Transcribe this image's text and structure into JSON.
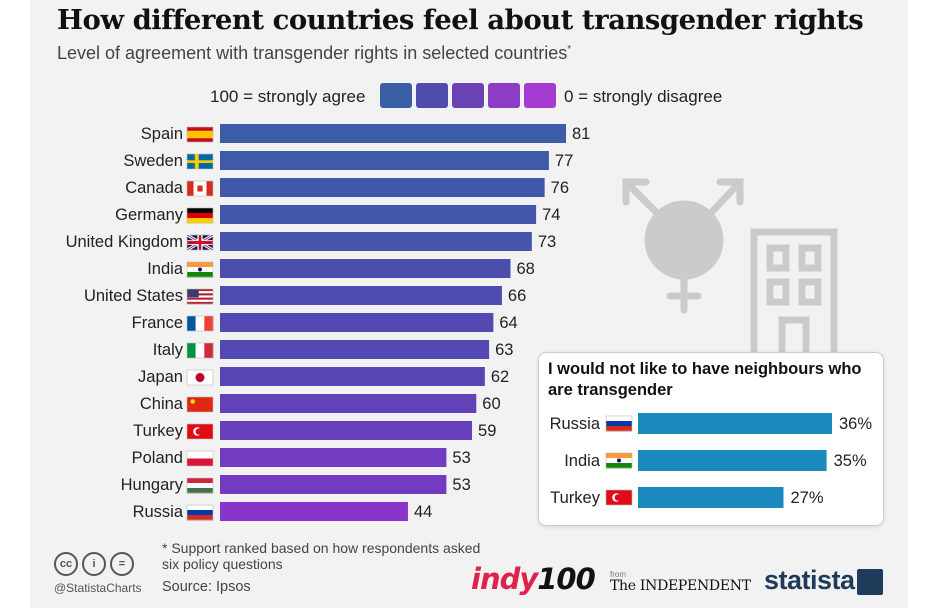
{
  "header": {
    "title": "How different countries feel about transgender rights",
    "subtitle": "Level of agreement with transgender rights in selected countries",
    "subtitle_mark": "*"
  },
  "legend": {
    "left_label": "100 = strongly agree",
    "right_label": "0 = strongly disagree",
    "swatch_colors": [
      "#3b5fa6",
      "#4f4cab",
      "#6a42b3",
      "#8b3ec4",
      "#a53ad0"
    ]
  },
  "chart_data": [
    {
      "type": "bar",
      "orientation": "horizontal",
      "title": "How different countries feel about transgender rights",
      "categories": [
        "Spain",
        "Sweden",
        "Canada",
        "Germany",
        "United Kingdom",
        "India",
        "United States",
        "France",
        "Italy",
        "Japan",
        "China",
        "Turkey",
        "Poland",
        "Hungary",
        "Russia"
      ],
      "values": [
        81,
        77,
        76,
        74,
        73,
        68,
        66,
        64,
        63,
        62,
        60,
        59,
        53,
        53,
        44
      ],
      "xlim": [
        0,
        100
      ],
      "grid": false,
      "colors": [
        "#3d5ca8",
        "#3f5aa9",
        "#4158aa",
        "#4456ab",
        "#4655ab",
        "#4b4ead",
        "#4e4caf",
        "#5249b2",
        "#5448b3",
        "#5746b4",
        "#6142b8",
        "#6540ba",
        "#733bc0",
        "#733bc0",
        "#8a35ca"
      ]
    },
    {
      "type": "bar",
      "orientation": "horizontal",
      "title": "I would not like to have neighbours who are transgender",
      "categories": [
        "Russia",
        "India",
        "Turkey"
      ],
      "values": [
        36,
        35,
        27
      ],
      "value_suffix": "%",
      "color": "#1b8bbf"
    }
  ],
  "inset": {
    "title": "I would not like to have neighbours who are transgender"
  },
  "decor": {
    "symbol_icon": "transgender-symbol-icon",
    "building_icon": "building-icon",
    "symbol_color": "#cbcbcb"
  },
  "footer": {
    "footnote": "* Support ranked based on how respondents asked six policy questions",
    "source": "Source: Ipsos",
    "handle": "@StatistaCharts",
    "cc_icons": [
      "cc",
      "i",
      "="
    ],
    "indy_a": "indy",
    "indy_b": "100",
    "from": "from",
    "independent": "The INDEPENDENT",
    "statista": "statista"
  }
}
